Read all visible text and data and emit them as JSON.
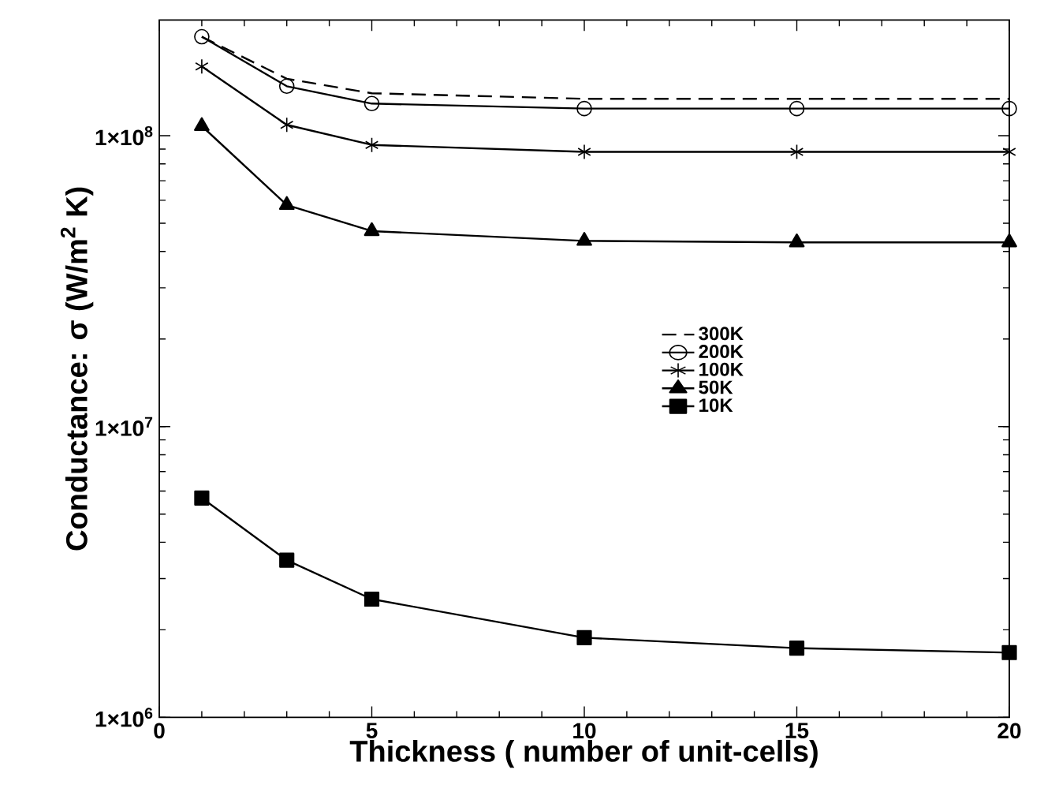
{
  "chart_data": {
    "type": "line",
    "xlabel": "Thickness ( number of unit-cells)",
    "ylabel": "Conductance: σ (W/m$^{2}$ K)",
    "x": [
      1,
      3,
      5,
      10,
      15,
      20
    ],
    "series": [
      {
        "name": "300K",
        "color": "#000000",
        "marker": "none",
        "line_style": "dashed",
        "values": [
          219000000,
          157000000,
          140000000,
          134000000,
          134000000,
          134000000
        ]
      },
      {
        "name": "200K",
        "color": "#000000",
        "marker": "circle",
        "line_style": "solid",
        "values": [
          219000000,
          148000000,
          129000000,
          124000000,
          124000000,
          124000000
        ]
      },
      {
        "name": "100K",
        "color": "#000000",
        "marker": "cross",
        "line_style": "solid",
        "values": [
          173000000,
          109000000,
          93000000,
          88000000,
          88000000,
          88000000
        ]
      },
      {
        "name": "50K",
        "color": "#000000",
        "marker": "triangle",
        "line_style": "solid",
        "values": [
          108000000,
          57800000,
          47000000,
          43500000,
          43000000,
          43000000
        ]
      },
      {
        "name": "10K",
        "color": "#000000",
        "marker": "square",
        "line_style": "solid",
        "values": [
          5680000,
          3470000,
          2550000,
          1880000,
          1730000,
          1670000
        ]
      }
    ],
    "xlim": [
      0,
      20
    ],
    "xticks": [
      0,
      5,
      10,
      15,
      20
    ],
    "ylim": [
      1000000,
      250000000
    ],
    "yticks": [
      {
        "value": 1000000,
        "label": "1×10$^{6}$"
      },
      {
        "value": 10000000,
        "label": "1×10$^{7}$"
      },
      {
        "value": 100000000,
        "label": "1×10$^{8}$"
      }
    ],
    "log": "y",
    "legend": "right"
  }
}
